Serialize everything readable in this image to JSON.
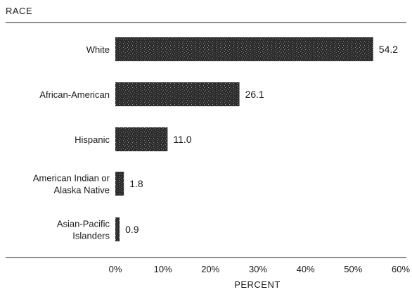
{
  "chart_data": {
    "type": "bar",
    "orientation": "horizontal",
    "title": "RACE",
    "xlabel": "PERCENT",
    "ylabel": "",
    "categories": [
      [
        "White"
      ],
      [
        "African-American"
      ],
      [
        "Hispanic"
      ],
      [
        "American Indian or",
        "Alaska Native"
      ],
      [
        "Asian-Pacific",
        "Islanders"
      ]
    ],
    "values": [
      54.2,
      26.1,
      11.0,
      1.8,
      0.9
    ],
    "value_labels": [
      "54.2",
      "26.1",
      "11.0",
      "1.8",
      "0.9"
    ],
    "xlim": [
      0,
      60
    ],
    "xticks": [
      0,
      10,
      20,
      30,
      40,
      50,
      60
    ],
    "xtick_labels": [
      "0%",
      "10%",
      "20%",
      "30%",
      "40%",
      "50%",
      "60%"
    ],
    "grid": false,
    "legend": "none",
    "bar_color": "#2b2b2b"
  }
}
